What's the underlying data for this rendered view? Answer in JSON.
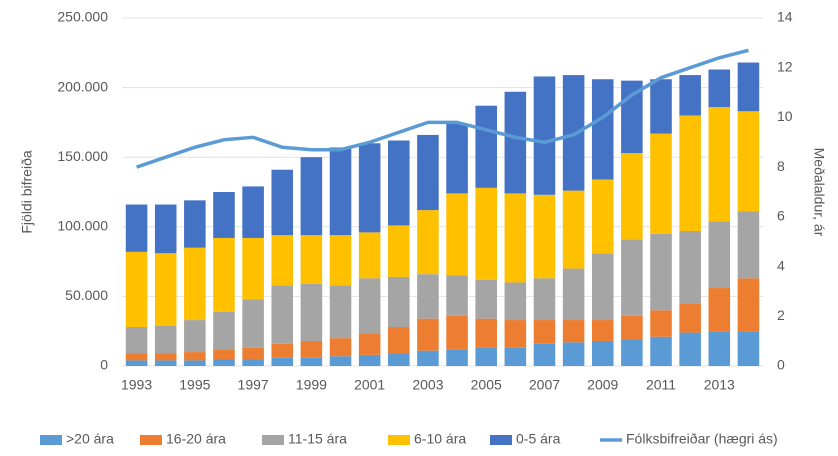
{
  "chart_data": {
    "type": "bar",
    "categories": [
      "1993",
      null,
      "1995",
      null,
      "1997",
      null,
      "1999",
      null,
      "2001",
      null,
      "2003",
      null,
      "2005",
      null,
      "2007",
      null,
      "2009",
      null,
      "2011",
      null,
      "2013",
      null
    ],
    "stacked": true,
    "y_axis_label": "Fjöldi bifreiða",
    "y2_axis_label": "Meðalaldur, ár",
    "series": [
      {
        "name": ">20 ára",
        "color": "#5b9bd5",
        "values": [
          4000,
          4000,
          4000,
          5000,
          5000,
          6000,
          6000,
          7000,
          8000,
          9000,
          11000,
          12000,
          13000,
          13000,
          16000,
          17000,
          18000,
          19000,
          21000,
          24000,
          25000,
          25000
        ]
      },
      {
        "name": "16-20 ára",
        "color": "#ed7d31",
        "values": [
          5000,
          5000,
          6000,
          7000,
          8000,
          10000,
          12000,
          13000,
          15000,
          19000,
          23000,
          24000,
          21000,
          20000,
          17000,
          16000,
          15000,
          17000,
          19000,
          21000,
          31000,
          38000
        ]
      },
      {
        "name": "11-15 ára",
        "color": "#a5a5a5",
        "values": [
          19000,
          20000,
          23000,
          27000,
          35000,
          42000,
          41000,
          38000,
          40000,
          36000,
          32000,
          29000,
          28000,
          27000,
          30000,
          37000,
          48000,
          55000,
          55000,
          52000,
          48000,
          48000
        ]
      },
      {
        "name": "6-10 ára",
        "color": "#ffc000",
        "values": [
          54000,
          52000,
          52000,
          53000,
          44000,
          36000,
          35000,
          36000,
          33000,
          37000,
          46000,
          59000,
          66000,
          64000,
          60000,
          56000,
          53000,
          62000,
          72000,
          83000,
          82000,
          72000
        ]
      },
      {
        "name": "0-5 ára",
        "color": "#4472c4",
        "values": [
          34000,
          35000,
          34000,
          33000,
          37000,
          47000,
          56000,
          63000,
          64000,
          61000,
          54000,
          50000,
          59000,
          73000,
          85000,
          83000,
          72000,
          52000,
          39000,
          29000,
          27000,
          35000
        ]
      },
      {
        "name": "Fólksbifreiðar (hægri ás)",
        "color": "#5b9bd5",
        "type": "line",
        "axis": "y2",
        "values": [
          8.0,
          8.4,
          8.8,
          9.1,
          9.2,
          8.8,
          8.7,
          8.7,
          9.0,
          9.4,
          9.8,
          9.8,
          9.5,
          9.2,
          9.0,
          9.3,
          10.0,
          10.9,
          11.6,
          12.0,
          12.4,
          12.7
        ]
      }
    ],
    "ylim": [
      0,
      250000
    ],
    "yticks": [
      0,
      {
        "value": 50000,
        "label": "50.000"
      },
      {
        "value": 100000,
        "label": "100.000"
      },
      {
        "value": 150000,
        "label": "150.000"
      },
      {
        "value": 200000,
        "label": "200.000"
      },
      {
        "value": 250000,
        "label": "250.000"
      }
    ],
    "y2lim": [
      0,
      14
    ],
    "y2ticks": [
      0,
      2,
      4,
      6,
      8,
      10,
      12,
      14
    ],
    "grid": true,
    "legend": "bottom"
  }
}
